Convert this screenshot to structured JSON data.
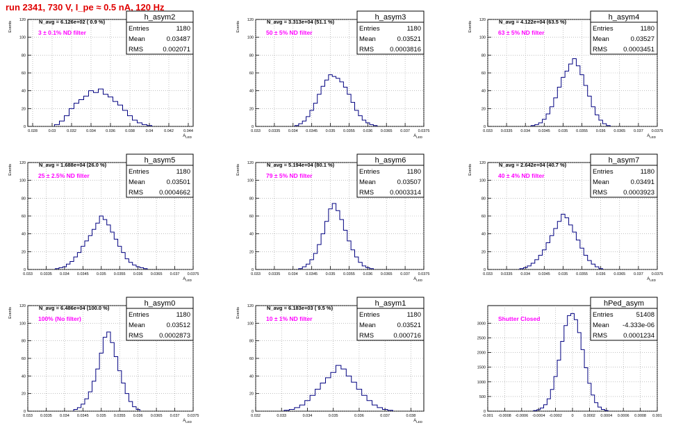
{
  "page_title": "run 2341,   730 V, I_pe ≈ 0.5 nA, 120 Hz",
  "stat_labels": {
    "entries": "Entries",
    "mean": "Mean",
    "rms": "RMS"
  },
  "colors": {
    "histogram": "#000080",
    "annotation": "#ff00ff",
    "title": "#e00000",
    "grid": "#999999"
  },
  "chart_data": [
    {
      "type": "bar",
      "hist_name": "h_asym2",
      "ylabel": "Events",
      "xlabel": "A_LED",
      "n_avg_text": "N_avg = 6.126e+02 ( 0.9 %)",
      "annotation": "3 ± 0.1% ND filter",
      "stats": {
        "entries": "1180",
        "mean": "0.03487",
        "rms": "0.002071"
      },
      "xlim": [
        0.0275,
        0.0445
      ],
      "ylim": [
        0,
        120
      ],
      "x_ticks": [
        "0.028",
        "0.03",
        "0.032",
        "0.034",
        "0.036",
        "0.038",
        "0.04",
        "0.042",
        "0.044"
      ],
      "x_tick_values": [
        0.028,
        0.03,
        0.032,
        0.034,
        0.036,
        0.038,
        0.04,
        0.042,
        0.044
      ],
      "y_ticks": [
        "0",
        "20",
        "40",
        "60",
        "80",
        "100",
        "120"
      ],
      "y_tick_values": [
        0,
        20,
        40,
        60,
        80,
        100,
        120
      ],
      "x": [
        0.0305,
        0.031,
        0.0315,
        0.032,
        0.0325,
        0.033,
        0.0335,
        0.034,
        0.0345,
        0.035,
        0.0355,
        0.036,
        0.0365,
        0.037,
        0.0375,
        0.038,
        0.0385,
        0.039,
        0.0395,
        0.04
      ],
      "values": [
        2,
        6,
        12,
        20,
        26,
        30,
        34,
        40,
        38,
        42,
        36,
        33,
        28,
        24,
        18,
        12,
        7,
        4,
        2,
        1
      ]
    },
    {
      "type": "bar",
      "hist_name": "h_asym3",
      "ylabel": "Events",
      "xlabel": "A_LED",
      "n_avg_text": "N_avg = 3.313e+04 (51.1 %)",
      "annotation": "50 ± 5% ND filter",
      "stats": {
        "entries": "1180",
        "mean": "0.03521",
        "rms": "0.0003816"
      },
      "xlim": [
        0.033,
        0.0375
      ],
      "ylim": [
        0,
        120
      ],
      "x_ticks": [
        "0.033",
        "0.0335",
        "0.034",
        "0.0345",
        "0.035",
        "0.0355",
        "0.036",
        "0.0365",
        "0.037",
        "0.0375"
      ],
      "x_tick_values": [
        0.033,
        0.0335,
        0.034,
        0.0345,
        0.035,
        0.0355,
        0.036,
        0.0365,
        0.037,
        0.0375
      ],
      "y_ticks": [
        "0",
        "20",
        "40",
        "60",
        "80",
        "100",
        "120"
      ],
      "y_tick_values": [
        0,
        20,
        40,
        60,
        80,
        100,
        120
      ],
      "x": [
        0.0341,
        0.0342,
        0.0343,
        0.0344,
        0.0345,
        0.0346,
        0.0347,
        0.0348,
        0.0349,
        0.035,
        0.0351,
        0.0352,
        0.0353,
        0.0354,
        0.0355,
        0.0356,
        0.0357,
        0.0358,
        0.0359,
        0.036,
        0.0361,
        0.0362
      ],
      "values": [
        1,
        3,
        6,
        11,
        18,
        26,
        36,
        45,
        52,
        58,
        56,
        54,
        50,
        44,
        36,
        27,
        18,
        12,
        7,
        4,
        2,
        1
      ]
    },
    {
      "type": "bar",
      "hist_name": "h_asym4",
      "ylabel": "Events",
      "xlabel": "A_LED",
      "n_avg_text": "N_avg = 4.122e+04 (63.5 %)",
      "annotation": "63 ± 5% ND filter",
      "stats": {
        "entries": "1180",
        "mean": "0.03527",
        "rms": "0.0003451"
      },
      "xlim": [
        0.033,
        0.0375
      ],
      "ylim": [
        0,
        120
      ],
      "x_ticks": [
        "0.033",
        "0.0335",
        "0.034",
        "0.0345",
        "0.035",
        "0.0355",
        "0.036",
        "0.0365",
        "0.037",
        "0.0375"
      ],
      "x_tick_values": [
        0.033,
        0.0335,
        0.034,
        0.0345,
        0.035,
        0.0355,
        0.036,
        0.0365,
        0.037,
        0.0375
      ],
      "y_ticks": [
        "0",
        "20",
        "40",
        "60",
        "80",
        "100",
        "120"
      ],
      "y_tick_values": [
        0,
        20,
        40,
        60,
        80,
        100,
        120
      ],
      "x": [
        0.0342,
        0.0343,
        0.0344,
        0.0345,
        0.0346,
        0.0347,
        0.0348,
        0.0349,
        0.035,
        0.0351,
        0.0352,
        0.0353,
        0.0354,
        0.0355,
        0.0356,
        0.0357,
        0.0358,
        0.0359,
        0.036,
        0.0361,
        0.0362
      ],
      "values": [
        1,
        2,
        4,
        8,
        14,
        22,
        32,
        44,
        55,
        62,
        70,
        76,
        68,
        58,
        46,
        34,
        22,
        13,
        7,
        3,
        1
      ]
    },
    {
      "type": "bar",
      "hist_name": "h_asym5",
      "ylabel": "Events",
      "xlabel": "A_LED",
      "n_avg_text": "N_avg = 1.688e+04 (26.0 %)",
      "annotation": "25 ± 2.5% ND filter",
      "stats": {
        "entries": "1180",
        "mean": "0.03501",
        "rms": "0.0004662"
      },
      "xlim": [
        0.033,
        0.0375
      ],
      "ylim": [
        0,
        120
      ],
      "x_ticks": [
        "0.033",
        "0.0335",
        "0.034",
        "0.0345",
        "0.035",
        "0.0355",
        "0.036",
        "0.0365",
        "0.037",
        "0.0375"
      ],
      "x_tick_values": [
        0.033,
        0.0335,
        0.034,
        0.0345,
        0.035,
        0.0355,
        0.036,
        0.0365,
        0.037,
        0.0375
      ],
      "y_ticks": [
        "0",
        "20",
        "40",
        "60",
        "80",
        "100",
        "120"
      ],
      "y_tick_values": [
        0,
        20,
        40,
        60,
        80,
        100,
        120
      ],
      "x": [
        0.0338,
        0.0339,
        0.034,
        0.0341,
        0.0342,
        0.0343,
        0.0344,
        0.0345,
        0.0346,
        0.0347,
        0.0348,
        0.0349,
        0.035,
        0.0351,
        0.0352,
        0.0353,
        0.0354,
        0.0355,
        0.0356,
        0.0357,
        0.0358,
        0.0359,
        0.036,
        0.0361,
        0.0362
      ],
      "values": [
        1,
        2,
        3,
        6,
        9,
        14,
        19,
        26,
        32,
        38,
        45,
        52,
        60,
        56,
        50,
        42,
        34,
        26,
        19,
        12,
        8,
        5,
        3,
        2,
        1
      ]
    },
    {
      "type": "bar",
      "hist_name": "h_asym6",
      "ylabel": "Events",
      "xlabel": "A_LED",
      "n_avg_text": "N_avg = 5.194e+04 (80.1 %)",
      "annotation": "79 ± 5% ND filter",
      "stats": {
        "entries": "1180",
        "mean": "0.03507",
        "rms": "0.0003314"
      },
      "xlim": [
        0.033,
        0.0375
      ],
      "ylim": [
        0,
        120
      ],
      "x_ticks": [
        "0.033",
        "0.0335",
        "0.034",
        "0.0345",
        "0.035",
        "0.0355",
        "0.036",
        "0.0365",
        "0.037",
        "0.0375"
      ],
      "x_tick_values": [
        0.033,
        0.0335,
        0.034,
        0.0345,
        0.035,
        0.0355,
        0.036,
        0.0365,
        0.037,
        0.0375
      ],
      "y_ticks": [
        "0",
        "20",
        "40",
        "60",
        "80",
        "100",
        "120"
      ],
      "y_tick_values": [
        0,
        20,
        40,
        60,
        80,
        100,
        120
      ],
      "x": [
        0.0342,
        0.0343,
        0.0344,
        0.0345,
        0.0346,
        0.0347,
        0.0348,
        0.0349,
        0.035,
        0.0351,
        0.0352,
        0.0353,
        0.0354,
        0.0355,
        0.0356,
        0.0357,
        0.0358,
        0.0359,
        0.036,
        0.0361
      ],
      "values": [
        1,
        3,
        6,
        11,
        18,
        28,
        40,
        54,
        68,
        74,
        66,
        56,
        44,
        32,
        22,
        14,
        8,
        4,
        2,
        1
      ]
    },
    {
      "type": "bar",
      "hist_name": "h_asym7",
      "ylabel": "Events",
      "xlabel": "A_LED",
      "n_avg_text": "N_avg = 2.642e+04 (40.7 %)",
      "annotation": "40 ± 4% ND filter",
      "stats": {
        "entries": "1180",
        "mean": "0.03491",
        "rms": "0.0003923"
      },
      "xlim": [
        0.033,
        0.0375
      ],
      "ylim": [
        0,
        120
      ],
      "x_ticks": [
        "0.033",
        "0.0335",
        "0.034",
        "0.0345",
        "0.035",
        "0.0355",
        "0.036",
        "0.0365",
        "0.037",
        "0.0375"
      ],
      "x_tick_values": [
        0.033,
        0.0335,
        0.034,
        0.0345,
        0.035,
        0.0355,
        0.036,
        0.0365,
        0.037,
        0.0375
      ],
      "y_ticks": [
        "0",
        "20",
        "40",
        "60",
        "80",
        "100",
        "120"
      ],
      "y_tick_values": [
        0,
        20,
        40,
        60,
        80,
        100,
        120
      ],
      "x": [
        0.0339,
        0.034,
        0.0341,
        0.0342,
        0.0343,
        0.0344,
        0.0345,
        0.0346,
        0.0347,
        0.0348,
        0.0349,
        0.035,
        0.0351,
        0.0352,
        0.0353,
        0.0354,
        0.0355,
        0.0356,
        0.0357,
        0.0358,
        0.0359,
        0.036
      ],
      "values": [
        1,
        2,
        4,
        7,
        11,
        16,
        22,
        30,
        38,
        46,
        54,
        62,
        58,
        50,
        42,
        33,
        24,
        16,
        10,
        6,
        3,
        1
      ]
    },
    {
      "type": "bar",
      "hist_name": "h_asym0",
      "ylabel": "Events",
      "xlabel": "A_LED",
      "n_avg_text": "N_avg = 6.486e+04 (100.0 %)",
      "annotation": "100% (No filter)",
      "stats": {
        "entries": "1180",
        "mean": "0.03512",
        "rms": "0.0002873"
      },
      "xlim": [
        0.033,
        0.0375
      ],
      "ylim": [
        0,
        120
      ],
      "x_ticks": [
        "0.033",
        "0.0335",
        "0.034",
        "0.0345",
        "0.035",
        "0.0355",
        "0.036",
        "0.0365",
        "0.037",
        "0.0375"
      ],
      "x_tick_values": [
        0.033,
        0.0335,
        0.034,
        0.0345,
        0.035,
        0.0355,
        0.036,
        0.0365,
        0.037,
        0.0375
      ],
      "y_ticks": [
        "0",
        "20",
        "40",
        "60",
        "80",
        "100",
        "120"
      ],
      "y_tick_values": [
        0,
        20,
        40,
        60,
        80,
        100,
        120
      ],
      "x": [
        0.0343,
        0.0344,
        0.0345,
        0.0346,
        0.0347,
        0.0348,
        0.0349,
        0.035,
        0.0351,
        0.0352,
        0.0353,
        0.0354,
        0.0355,
        0.0356,
        0.0357,
        0.0358,
        0.0359,
        0.036
      ],
      "values": [
        2,
        4,
        8,
        14,
        22,
        34,
        48,
        66,
        84,
        90,
        78,
        62,
        46,
        32,
        20,
        11,
        5,
        2
      ]
    },
    {
      "type": "bar",
      "hist_name": "h_asym1",
      "ylabel": "Events",
      "xlabel": "A_LED",
      "n_avg_text": "N_avg = 6.183e+03 ( 9.5 %)",
      "annotation": "10 ± 1% ND filter",
      "stats": {
        "entries": "1180",
        "mean": "0.03521",
        "rms": "0.000716"
      },
      "xlim": [
        0.032,
        0.0385
      ],
      "ylim": [
        0,
        120
      ],
      "x_ticks": [
        "0.032",
        "0.033",
        "0.034",
        "0.035",
        "0.036",
        "0.037",
        "0.038"
      ],
      "x_tick_values": [
        0.032,
        0.033,
        0.034,
        0.035,
        0.036,
        0.037,
        0.038
      ],
      "y_ticks": [
        "0",
        "20",
        "40",
        "60",
        "80",
        "100",
        "120"
      ],
      "y_tick_values": [
        0,
        20,
        40,
        60,
        80,
        100,
        120
      ],
      "x": [
        0.0332,
        0.0334,
        0.0336,
        0.0338,
        0.034,
        0.0342,
        0.0344,
        0.0346,
        0.0348,
        0.035,
        0.0352,
        0.0354,
        0.0356,
        0.0358,
        0.036,
        0.0362,
        0.0364,
        0.0366,
        0.0368,
        0.037,
        0.0372
      ],
      "values": [
        1,
        2,
        4,
        7,
        12,
        18,
        25,
        32,
        38,
        44,
        52,
        48,
        40,
        33,
        25,
        18,
        12,
        7,
        4,
        2,
        1
      ]
    },
    {
      "type": "bar",
      "hist_name": "hPed_asym",
      "ylabel": "",
      "xlabel": "",
      "n_avg_text": "",
      "annotation": "Shutter Closed",
      "stats": {
        "entries": "51408",
        "mean": "-4.333e-06",
        "rms": "0.0001234"
      },
      "xlim": [
        -0.001,
        0.001
      ],
      "ylim": [
        0,
        3600
      ],
      "x_ticks": [
        "-0.001",
        "-0.0008",
        "-0.0006",
        "-0.0004",
        "-0.0002",
        "0",
        "0.0002",
        "0.0004",
        "0.0006",
        "0.0008",
        "0.001"
      ],
      "x_tick_values": [
        -0.001,
        -0.0008,
        -0.0006,
        -0.0004,
        -0.0002,
        0,
        0.0002,
        0.0004,
        0.0006,
        0.0008,
        0.001
      ],
      "y_ticks": [
        "0",
        "500",
        "1000",
        "1500",
        "2000",
        "2500",
        "3000"
      ],
      "y_tick_values": [
        0,
        500,
        1000,
        1500,
        2000,
        2500,
        3000
      ],
      "x": [
        -0.00044,
        -0.0004,
        -0.00036,
        -0.00032,
        -0.00028,
        -0.00024,
        -0.0002,
        -0.00016,
        -0.00012,
        -8e-05,
        -4e-05,
        0,
        4e-05,
        8e-05,
        0.00012,
        0.00016,
        0.0002,
        0.00024,
        0.00028,
        0.00032,
        0.00036,
        0.0004
      ],
      "values": [
        20,
        50,
        110,
        220,
        420,
        740,
        1180,
        1740,
        2380,
        2920,
        3260,
        3330,
        3120,
        2680,
        2100,
        1480,
        950,
        550,
        290,
        140,
        60,
        20
      ]
    }
  ]
}
